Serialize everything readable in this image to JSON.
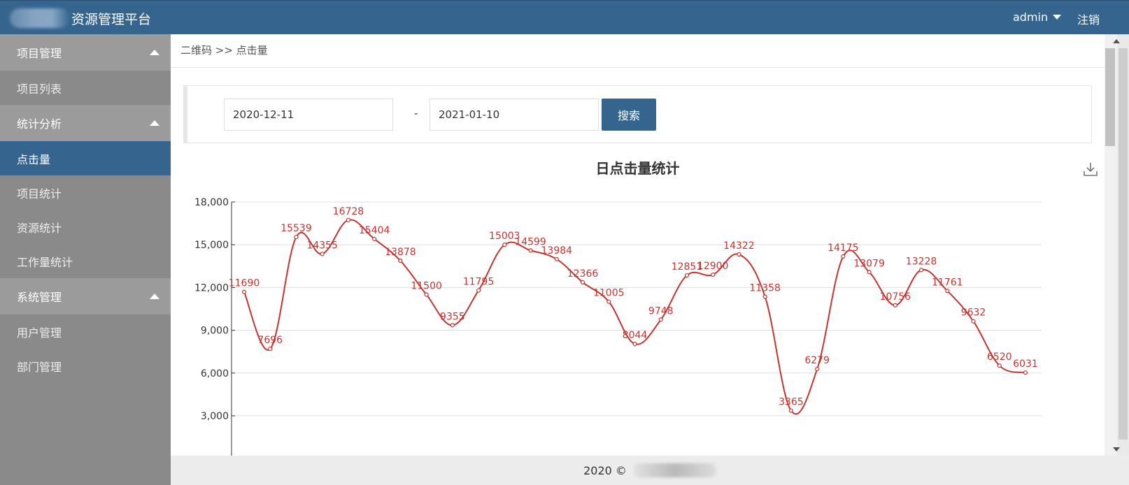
{
  "app": {
    "title": "资源管理平台",
    "user": "admin",
    "logout": "注销"
  },
  "sidebar": {
    "groups": [
      {
        "label": "项目管理",
        "items": [
          "项目列表"
        ]
      },
      {
        "label": "统计分析",
        "items": [
          "点击量",
          "项目统计",
          "资源统计",
          "工作量统计"
        ]
      },
      {
        "label": "系统管理",
        "items": [
          "用户管理",
          "部门管理"
        ]
      }
    ],
    "active_item": "点击量"
  },
  "breadcrumb": "二维码 >> 点击量",
  "search": {
    "start_date": "2020-12-11",
    "separator": "-",
    "end_date": "2021-01-10",
    "button": "搜索"
  },
  "chart_title": "日点击量统计",
  "chart_data": {
    "type": "line",
    "title": "日点击量统计",
    "smooth": true,
    "color": "#c23531",
    "values": [
      11690,
      7696,
      15539,
      14355,
      16728,
      15404,
      13878,
      11500,
      9355,
      11795,
      15003,
      14599,
      13984,
      12366,
      11005,
      8044,
      9748,
      12851,
      12900,
      14322,
      11358,
      3365,
      6279,
      14175,
      13079,
      10756,
      13228,
      11761,
      9632,
      6520,
      6031
    ],
    "y_ticks": [
      "18,000",
      "15,000",
      "12,000",
      "9,000",
      "6,000",
      "3,000"
    ],
    "y_tick_values": [
      18000,
      15000,
      12000,
      9000,
      6000,
      3000
    ],
    "grid": true
  },
  "footer": {
    "text": "2020 ©"
  },
  "icons": {
    "download": "download-icon",
    "menu_arrow": "chevron-up-icon",
    "user_caret": "caret-down-icon"
  }
}
